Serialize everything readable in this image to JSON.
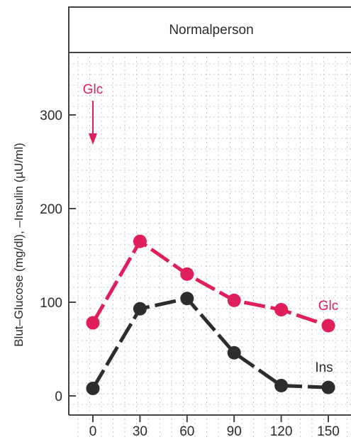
{
  "chart_data": {
    "type": "line",
    "title": "Normalperson",
    "xlabel": "",
    "ylabel": "Blut–Glucose (mg/dl), –Insulin (µU/ml)",
    "x": [
      0,
      30,
      60,
      90,
      120,
      150
    ],
    "x_tick_labels": [
      "0",
      "30",
      "60",
      "90",
      "120",
      "150"
    ],
    "y_tick_labels": [
      "0",
      "100",
      "200",
      "300"
    ],
    "y_ticks": [
      0,
      100,
      200,
      300
    ],
    "xlim": [
      0,
      150
    ],
    "ylim": [
      0,
      360
    ],
    "grid": true,
    "series": [
      {
        "name": "Glc",
        "values": [
          78,
          165,
          130,
          102,
          92,
          75
        ],
        "color": "#e01e5a"
      },
      {
        "name": "Ins",
        "values": [
          8,
          93,
          104,
          46,
          11,
          9
        ],
        "color": "#2d2d2d"
      }
    ],
    "annotation": {
      "label": "Glc",
      "x": 0,
      "color": "#e01e5a"
    }
  }
}
